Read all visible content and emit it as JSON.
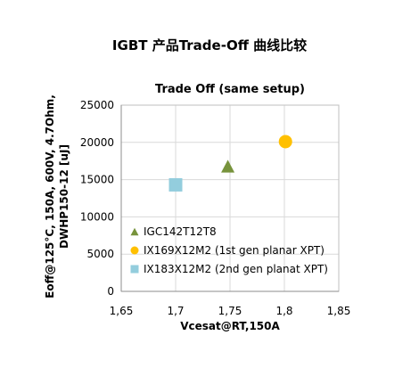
{
  "page_title": "IGBT 产品Trade-Off 曲线比较",
  "chart_data": {
    "type": "scatter",
    "title": "Trade Off (same setup)",
    "xlabel": "Vcesat@RT,150A",
    "ylabel_lines": [
      "Eoff@125°C, 150A, 600V, 4.7Ohm,",
      "DWHP150-12 [uJ]"
    ],
    "xlim": [
      1.65,
      1.85
    ],
    "ylim": [
      0,
      25000
    ],
    "x_ticks": [
      "1,65",
      "1,7",
      "1,75",
      "1,8",
      "1,85"
    ],
    "x_tick_values": [
      1.65,
      1.7,
      1.75,
      1.8,
      1.85
    ],
    "y_ticks": [
      "0",
      "5000",
      "10000",
      "15000",
      "20000",
      "25000"
    ],
    "y_tick_values": [
      0,
      5000,
      10000,
      15000,
      20000,
      25000
    ],
    "grid": true,
    "legend_position": "inside-bottom-left",
    "series": [
      {
        "name": "IGC142T12T8",
        "marker": "triangle",
        "color": "#77933C",
        "points": [
          {
            "x": 1.748,
            "y": 16800
          }
        ]
      },
      {
        "name": "IX169X12M2 (1st gen planar XPT)",
        "marker": "circle",
        "color": "#FFC000",
        "points": [
          {
            "x": 1.801,
            "y": 20100
          }
        ]
      },
      {
        "name": "IX183X12M2 (2nd gen planat XPT)",
        "marker": "square",
        "color": "#93CDDD",
        "points": [
          {
            "x": 1.7,
            "y": 14300
          }
        ]
      }
    ]
  }
}
